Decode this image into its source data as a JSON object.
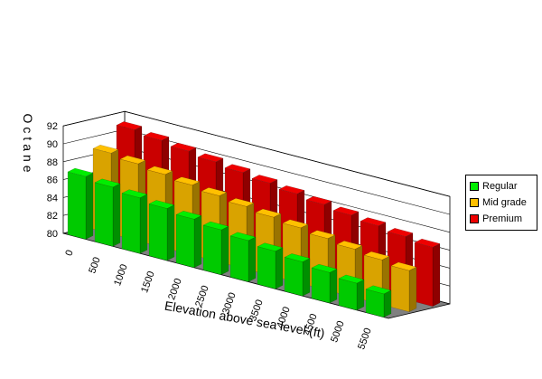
{
  "chart_data": {
    "type": "bar",
    "subtype": "3d-clustered-depth",
    "categories": [
      "0",
      "500",
      "1000",
      "1500",
      "2000",
      "2500",
      "3000",
      "3500",
      "4000",
      "4500",
      "5000",
      "5500"
    ],
    "series": [
      {
        "name": "Regular",
        "color": "#00ee00",
        "values": [
          87,
          86.6,
          86.2,
          85.8,
          85.4,
          85,
          84.6,
          84.2,
          83.8,
          83.4,
          83,
          82.6
        ]
      },
      {
        "name": "Mid grade",
        "color": "#ffc000",
        "values": [
          89,
          88.6,
          88.2,
          87.8,
          87.4,
          87,
          86.6,
          86.2,
          85.8,
          85.4,
          85,
          84.6
        ]
      },
      {
        "name": "Premium",
        "color": "#ee0000",
        "values": [
          91,
          90.6,
          90.2,
          89.8,
          89.4,
          89,
          88.6,
          88.2,
          87.8,
          87.4,
          87,
          86.6
        ]
      }
    ],
    "y_ticks": [
      "80",
      "82",
      "84",
      "86",
      "88",
      "90",
      "92"
    ],
    "ylim": [
      80,
      92
    ],
    "xlabel": "Elevation above sea level (ft)",
    "ylabel": "Octane",
    "legend_position": "right",
    "grid": true
  }
}
